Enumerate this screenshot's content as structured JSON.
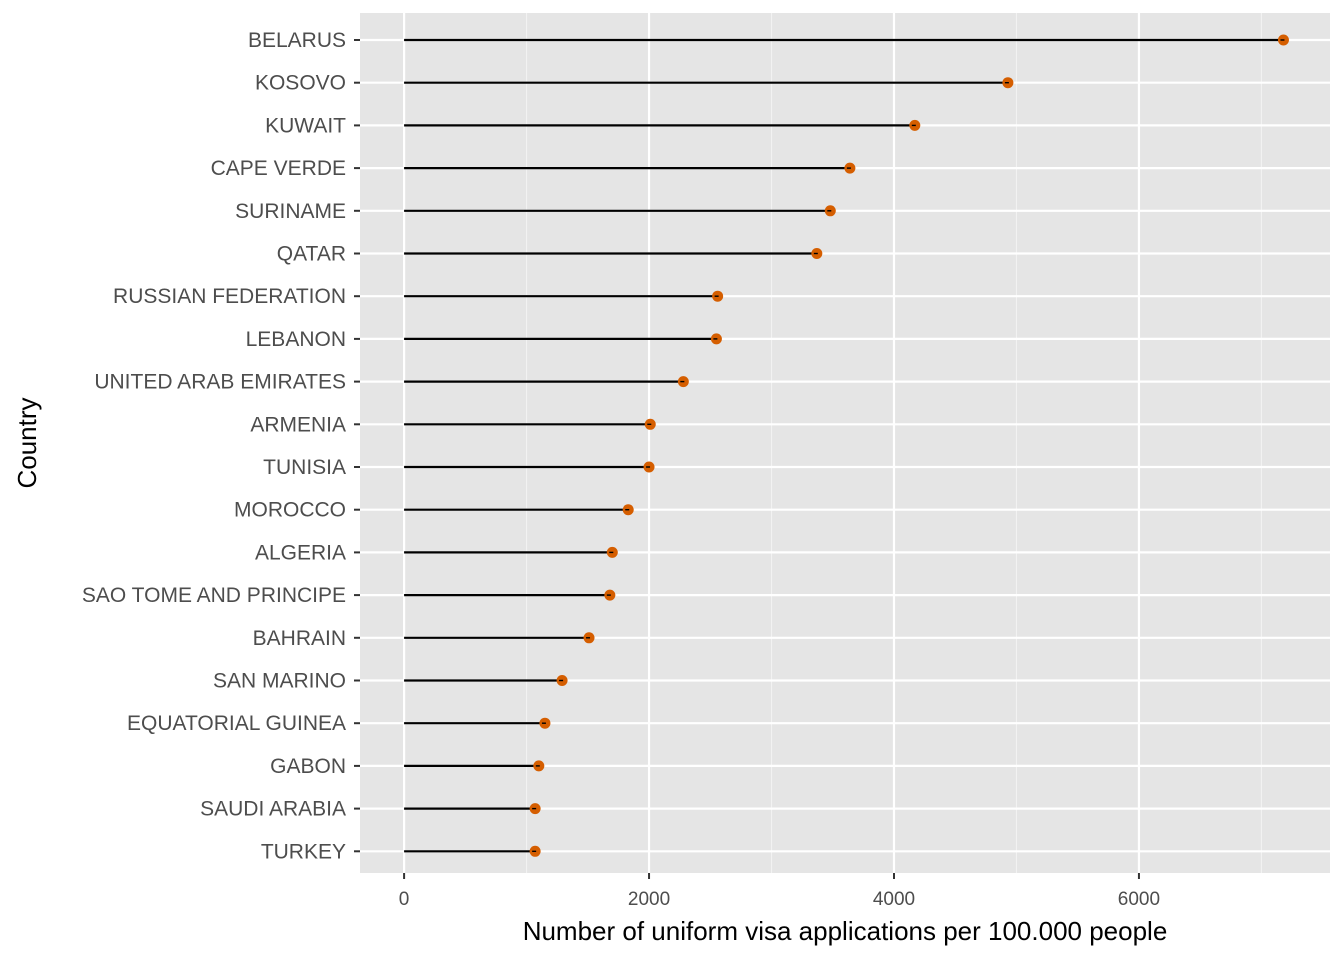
{
  "chart_data": {
    "type": "lollipop",
    "xlabel": "Number of uniform visa applications per 100.000 people",
    "ylabel": "Country",
    "xlim": [
      -360,
      7560
    ],
    "x_ticks": [
      0,
      2000,
      4000,
      6000
    ],
    "x_tick_labels": [
      "0",
      "2000",
      "4000",
      "6000"
    ],
    "grid": true,
    "colors": {
      "panel": "#e5e5e5",
      "grid_major": "#ffffff",
      "grid_minor": "#f2f2f2",
      "stem": "#000000",
      "point": "#d55e00"
    },
    "categories": [
      "BELARUS",
      "KOSOVO",
      "KUWAIT",
      "CAPE VERDE",
      "SURINAME",
      "QATAR",
      "RUSSIAN FEDERATION",
      "LEBANON",
      "UNITED ARAB EMIRATES",
      "ARMENIA",
      "TUNISIA",
      "MOROCCO",
      "ALGERIA",
      "SAO TOME AND PRINCIPE",
      "BAHRAIN",
      "SAN MARINO",
      "EQUATORIAL GUINEA",
      "GABON",
      "SAUDI ARABIA",
      "TURKEY"
    ],
    "values": [
      7180,
      4930,
      4170,
      3640,
      3480,
      3370,
      2560,
      2550,
      2280,
      2010,
      2000,
      1830,
      1700,
      1680,
      1510,
      1290,
      1150,
      1100,
      1070,
      1070
    ]
  }
}
